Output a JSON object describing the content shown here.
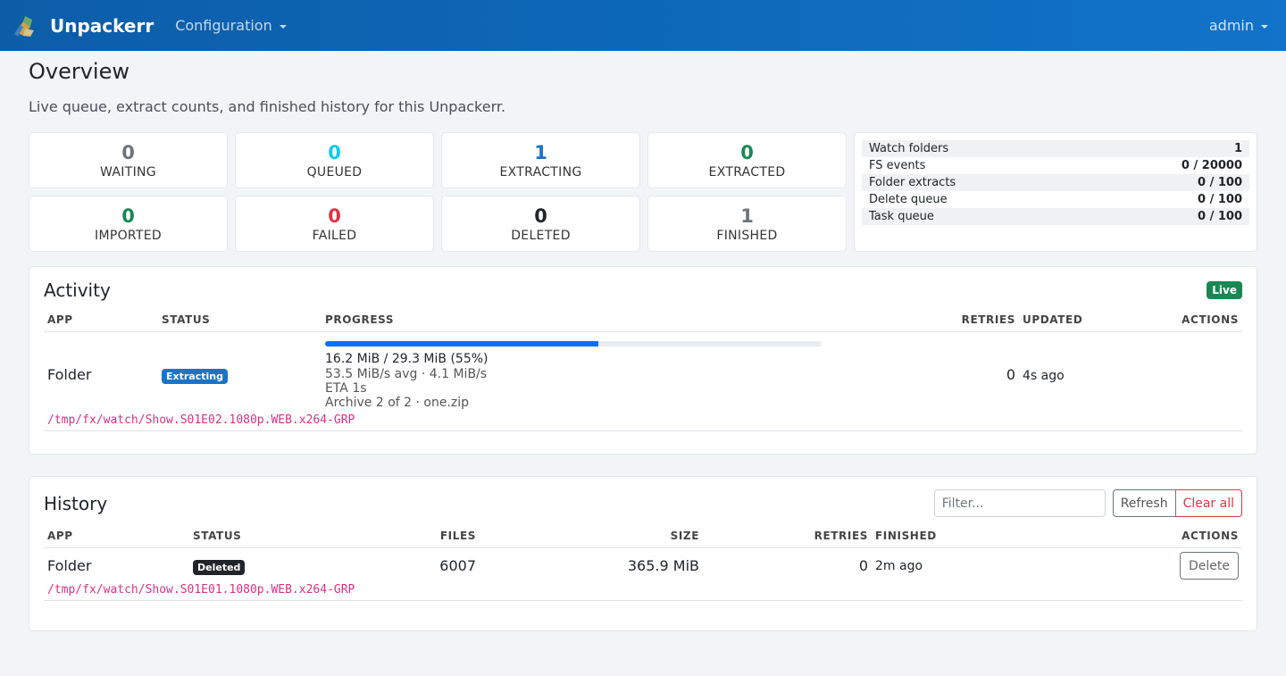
{
  "nav": {
    "brand": "Unpackerr",
    "logo_icon": "unpackerr-logo-icon",
    "menu_config": "Configuration",
    "user": "admin"
  },
  "header": {
    "title": "Overview",
    "subtitle": "Live queue, extract counts, and finished history for this Unpackerr."
  },
  "stats": [
    {
      "value": "0",
      "label": "WAITING",
      "color": "#6c757d"
    },
    {
      "value": "0",
      "label": "QUEUED",
      "color": "#0dcaf0"
    },
    {
      "value": "1",
      "label": "EXTRACTING",
      "color": "#1a73c8"
    },
    {
      "value": "0",
      "label": "EXTRACTED",
      "color": "#198754"
    },
    {
      "value": "0",
      "label": "IMPORTED",
      "color": "#198754"
    },
    {
      "value": "0",
      "label": "FAILED",
      "color": "#dc3545"
    },
    {
      "value": "0",
      "label": "DELETED",
      "color": "#212529"
    },
    {
      "value": "1",
      "label": "FINISHED",
      "color": "#6c757d"
    }
  ],
  "info": [
    {
      "label": "Watch folders",
      "value": "1"
    },
    {
      "label": "FS events",
      "value": "0 / 20000"
    },
    {
      "label": "Folder extracts",
      "value": "0 / 100"
    },
    {
      "label": "Delete queue",
      "value": "0 / 100"
    },
    {
      "label": "Task queue",
      "value": "0 / 100"
    }
  ],
  "activity": {
    "title": "Activity",
    "live_badge": "Live",
    "columns": {
      "app": "APP",
      "status": "STATUS",
      "progress": "PROGRESS",
      "retries": "RETRIES",
      "updated": "UPDATED",
      "actions": "ACTIONS"
    },
    "rows": [
      {
        "app": "Folder",
        "status": "Extracting",
        "progress_fraction": 0.55,
        "progress_main": "16.2 MiB / 29.3 MiB (55%)",
        "progress_speed": "53.5 MiB/s avg · 4.1 MiB/s",
        "progress_eta": "ETA 1s",
        "progress_archive": "Archive 2 of 2 · one.zip",
        "retries": "0",
        "updated": "4s ago",
        "path": "/tmp/fx/watch/Show.S01E02.1080p.WEB.x264-GRP"
      }
    ]
  },
  "history": {
    "title": "History",
    "filter_placeholder": "Filter...",
    "refresh_label": "Refresh",
    "clear_label": "Clear all",
    "columns": {
      "app": "APP",
      "status": "STATUS",
      "files": "FILES",
      "size": "SIZE",
      "retries": "RETRIES",
      "finished": "FINISHED",
      "actions": "ACTIONS"
    },
    "rows": [
      {
        "app": "Folder",
        "status": "Deleted",
        "files": "6007",
        "size": "365.9 MiB",
        "retries": "0",
        "finished": "2m ago",
        "action": "Delete",
        "path": "/tmp/fx/watch/Show.S01E01.1080p.WEB.x264-GRP"
      }
    ]
  }
}
